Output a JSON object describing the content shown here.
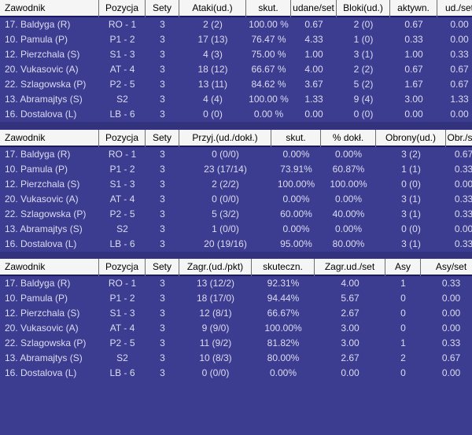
{
  "colors": {
    "row_bg": "#3C3C90",
    "row_text": "#DCDCF2",
    "header_bg": "#F5F5F5",
    "header_text": "#000000",
    "header_divider": "#6E6E6E",
    "header_bottom_border": "#1B1B62",
    "table_gap": "#32327E"
  },
  "tables": [
    {
      "name": "attack-block-stats",
      "columns": [
        "Zawodnik",
        "Pozycja",
        "Sety",
        "Ataki(ud.)",
        "skut.",
        "udane/set",
        "Bloki(ud.)",
        "aktywn.",
        "ud./set"
      ],
      "rows": [
        [
          "17. Baldyga (R)",
          "RO - 1",
          "3",
          "2 (2)",
          "100.00 %",
          "0.67",
          "2 (0)",
          "0.67",
          "0.00"
        ],
        [
          "10. Pamula (P)",
          "P1 - 2",
          "3",
          "17 (13)",
          "76.47 %",
          "4.33",
          "1 (0)",
          "0.33",
          "0.00"
        ],
        [
          "12. Pierzchala (S)",
          "S1 - 3",
          "3",
          "4 (3)",
          "75.00 %",
          "1.00",
          "3 (1)",
          "1.00",
          "0.33"
        ],
        [
          "20. Vukasovic (A)",
          "AT - 4",
          "3",
          "18 (12)",
          "66.67 %",
          "4.00",
          "2 (2)",
          "0.67",
          "0.67"
        ],
        [
          "22. Szlagowska (P)",
          "P2 - 5",
          "3",
          "13 (11)",
          "84.62 %",
          "3.67",
          "5 (2)",
          "1.67",
          "0.67"
        ],
        [
          "13. Abramajtys (S)",
          "S2",
          "3",
          "4 (4)",
          "100.00 %",
          "1.33",
          "9 (4)",
          "3.00",
          "1.33"
        ],
        [
          "16. Dostalova (L)",
          "LB - 6",
          "3",
          "0 (0)",
          "0.00 %",
          "0.00",
          "0 (0)",
          "0.00",
          "0.00"
        ]
      ]
    },
    {
      "name": "reception-defense-stats",
      "columns": [
        "Zawodnik",
        "Pozycja",
        "Sety",
        "Przyj.(ud./dokł.)",
        "skut.",
        "% dokł.",
        "Obrony(ud.)",
        "Obr./set"
      ],
      "rows": [
        [
          "17. Baldyga (R)",
          "RO - 1",
          "3",
          "0 (0/0)",
          "0.00%",
          "0.00%",
          "3 (2)",
          "0.67"
        ],
        [
          "10. Pamula (P)",
          "P1 - 2",
          "3",
          "23 (17/14)",
          "73.91%",
          "60.87%",
          "1 (1)",
          "0.33"
        ],
        [
          "12. Pierzchala (S)",
          "S1 - 3",
          "3",
          "2 (2/2)",
          "100.00%",
          "100.00%",
          "0 (0)",
          "0.00"
        ],
        [
          "20. Vukasovic (A)",
          "AT - 4",
          "3",
          "0 (0/0)",
          "0.00%",
          "0.00%",
          "3 (1)",
          "0.33"
        ],
        [
          "22. Szlagowska (P)",
          "P2 - 5",
          "3",
          "5 (3/2)",
          "60.00%",
          "40.00%",
          "3 (1)",
          "0.33"
        ],
        [
          "13. Abramajtys (S)",
          "S2",
          "3",
          "1 (0/0)",
          "0.00%",
          "0.00%",
          "0 (0)",
          "0.00"
        ],
        [
          "16. Dostalova (L)",
          "LB - 6",
          "3",
          "20 (19/16)",
          "95.00%",
          "80.00%",
          "3 (1)",
          "0.33"
        ]
      ]
    },
    {
      "name": "serve-stats",
      "columns": [
        "Zawodnik",
        "Pozycja",
        "Sety",
        "Zagr.(ud./pkt)",
        "skuteczn.",
        "Zagr.ud./set",
        "Asy",
        "Asy/set"
      ],
      "rows": [
        [
          "17. Baldyga (R)",
          "RO - 1",
          "3",
          "13 (12/2)",
          "92.31%",
          "4.00",
          "1",
          "0.33"
        ],
        [
          "10. Pamula (P)",
          "P1 - 2",
          "3",
          "18 (17/0)",
          "94.44%",
          "5.67",
          "0",
          "0.00"
        ],
        [
          "12. Pierzchala (S)",
          "S1 - 3",
          "3",
          "12 (8/1)",
          "66.67%",
          "2.67",
          "0",
          "0.00"
        ],
        [
          "20. Vukasovic (A)",
          "AT - 4",
          "3",
          "9 (9/0)",
          "100.00%",
          "3.00",
          "0",
          "0.00"
        ],
        [
          "22. Szlagowska (P)",
          "P2 - 5",
          "3",
          "11 (9/2)",
          "81.82%",
          "3.00",
          "1",
          "0.33"
        ],
        [
          "13. Abramajtys (S)",
          "S2",
          "3",
          "10 (8/3)",
          "80.00%",
          "2.67",
          "2",
          "0.67"
        ],
        [
          "16. Dostalova (L)",
          "LB - 6",
          "3",
          "0 (0/0)",
          "0.00%",
          "0.00",
          "0",
          "0.00"
        ]
      ]
    }
  ]
}
